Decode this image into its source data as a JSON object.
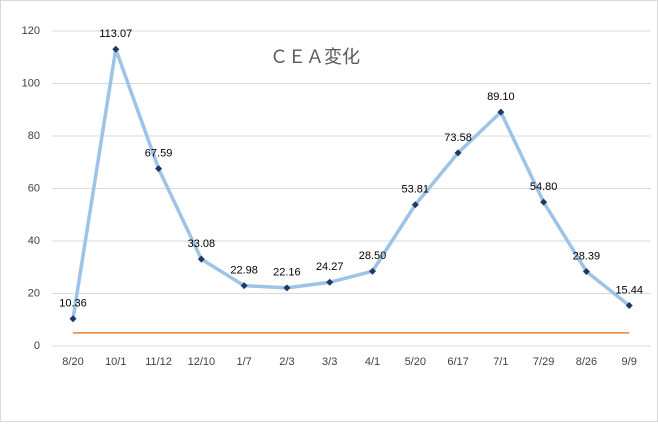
{
  "chart_data": {
    "type": "line",
    "title": "ＣＥＡ変化",
    "categories": [
      "8/20",
      "10/1",
      "11/12",
      "12/10",
      "1/7",
      "2/3",
      "3/3",
      "4/1",
      "5/20",
      "6/17",
      "7/1",
      "7/29",
      "8/26",
      "9/9"
    ],
    "series": [
      {
        "color": "#9dc3e6",
        "marker_color": "#1f3864",
        "values": [
          10.36,
          113.07,
          67.59,
          33.08,
          22.98,
          22.16,
          24.27,
          28.5,
          53.81,
          73.58,
          89.1,
          54.8,
          28.39,
          15.44
        ],
        "value_labels": [
          "10.36",
          "113.07",
          "67.59",
          "33.08",
          "22.98",
          "22.16",
          "24.27",
          "28.50",
          "53.81",
          "73.58",
          "89.10",
          "54.80",
          "28.39",
          "15.44"
        ]
      },
      {
        "color": "#ed7d31",
        "values": [
          5,
          5,
          5,
          5,
          5,
          5,
          5,
          5,
          5,
          5,
          5,
          5,
          5,
          5
        ]
      }
    ],
    "ylim": [
      0,
      120
    ],
    "yticks": [
      0,
      20,
      40,
      60,
      80,
      100,
      120
    ],
    "grid": true
  }
}
